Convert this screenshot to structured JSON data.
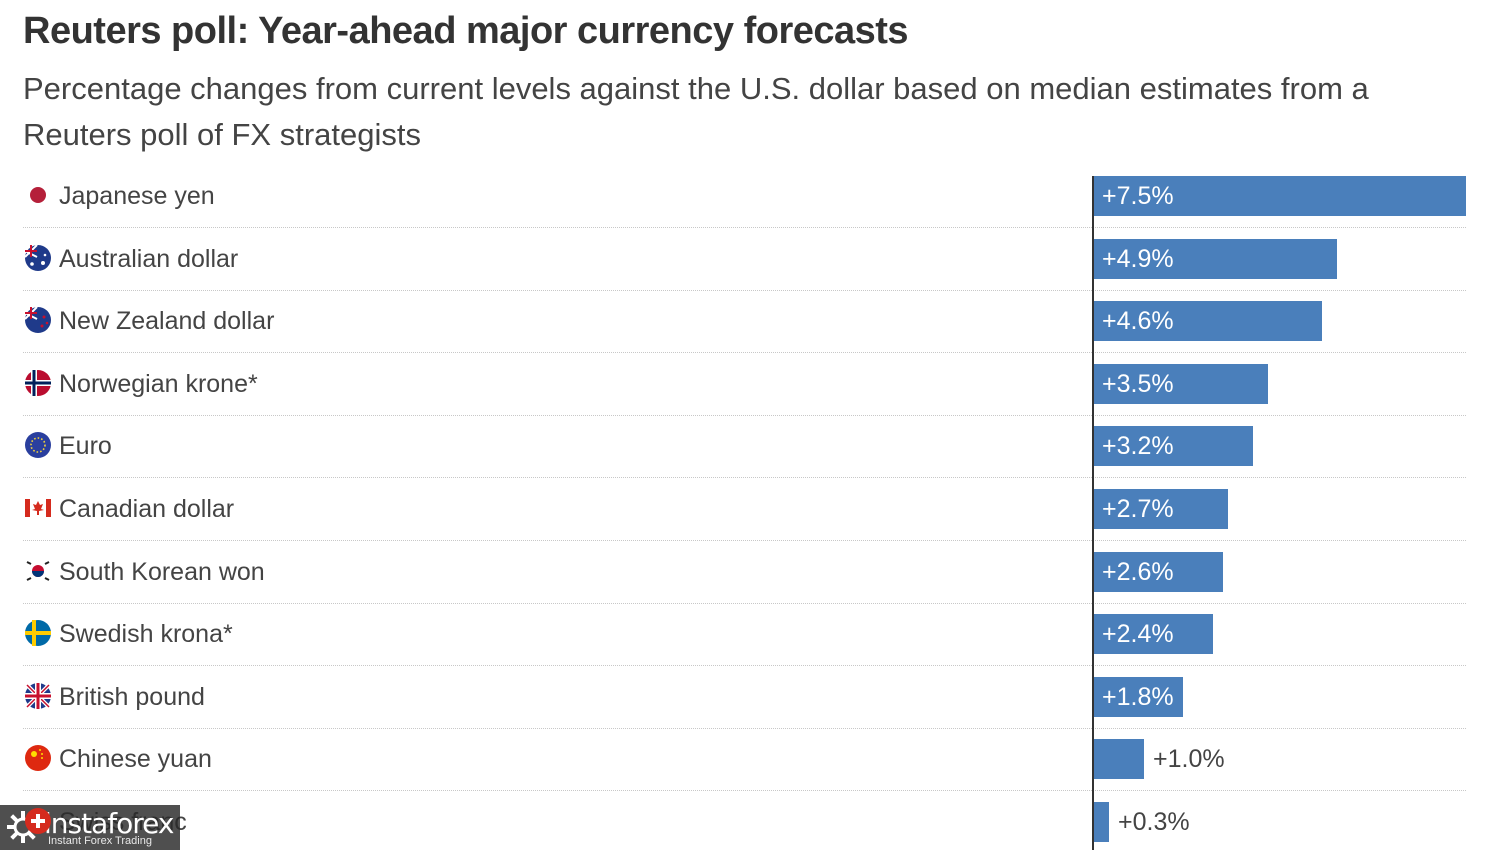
{
  "chart_data": {
    "type": "bar",
    "orientation": "horizontal",
    "title": "Reuters poll: Year-ahead major currency forecasts",
    "subtitle": "Percentage changes from current levels against the U.S. dollar based on median estimates from a Reuters poll of FX strategists",
    "categories": [
      "Japanese yen",
      "Australian dollar",
      "New Zealand dollar",
      "Norwegian krone*",
      "Euro",
      "Canadian dollar",
      "South Korean won",
      "Swedish krona*",
      "British pound",
      "Chinese yuan",
      "Swiss franc"
    ],
    "values": [
      7.5,
      4.9,
      4.6,
      3.5,
      3.2,
      2.7,
      2.6,
      2.4,
      1.8,
      1.0,
      0.3
    ],
    "value_labels": [
      "+7.5%",
      "+4.9%",
      "+4.6%",
      "+3.5%",
      "+3.2%",
      "+2.7%",
      "+2.6%",
      "+2.4%",
      "+1.8%",
      "+1.0%",
      "+0.3%"
    ],
    "flags": [
      "flag-japan-icon",
      "flag-australia-icon",
      "flag-new-zealand-icon",
      "flag-norway-icon",
      "flag-eu-icon",
      "flag-canada-icon",
      "flag-south-korea-icon",
      "flag-sweden-icon",
      "flag-uk-icon",
      "flag-china-icon",
      "flag-switzerland-icon"
    ],
    "xlim": [
      0,
      7.5
    ],
    "bar_color": "#4a7fbb",
    "grid": false
  },
  "watermark": {
    "brand": "instaforex",
    "tagline": "Instant Forex Trading",
    "icon": "gear-icon"
  }
}
